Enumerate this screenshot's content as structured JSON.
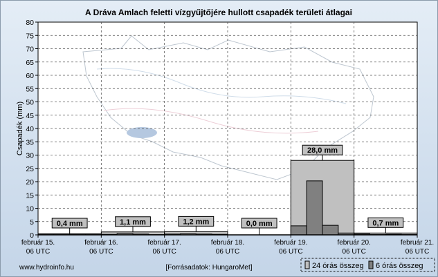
{
  "chart_data": {
    "type": "bar",
    "title": "A Dráva Amlach feletti vízgyűjtőjére hullott csapadék területi átlagai",
    "ylabel": "Csapadék (mm)",
    "xlabel": "",
    "ylim": [
      0,
      80
    ],
    "yticks": [
      0,
      5,
      10,
      15,
      20,
      25,
      30,
      35,
      40,
      45,
      50,
      55,
      60,
      65,
      70,
      75,
      80
    ],
    "grid": true,
    "xticks": [
      {
        "date": "február 15.",
        "time": "06 UTC"
      },
      {
        "date": "február 16.",
        "time": "06 UTC"
      },
      {
        "date": "február 17.",
        "time": "06 UTC"
      },
      {
        "date": "február 18.",
        "time": "06 UTC"
      },
      {
        "date": "február 19.",
        "time": "06 UTC"
      },
      {
        "date": "február 20.",
        "time": "06 UTC"
      },
      {
        "date": "február 21.",
        "time": "06 UTC"
      }
    ],
    "series": [
      {
        "name": "24 órás összeg",
        "color": "#c0c0c0",
        "values": [
          0.4,
          1.1,
          1.2,
          0.0,
          28.0,
          0.7
        ],
        "labels": [
          "0,4 mm",
          "1,1 mm",
          "1,2 mm",
          "0,0 mm",
          "28,0 mm",
          "0,7 mm"
        ]
      },
      {
        "name": "6 órás összeg",
        "color": "#808080",
        "values": [
          0.1,
          0.1,
          0.1,
          0.1,
          0.2,
          0.5,
          0.3,
          0.1,
          0.3,
          0.4,
          0.3,
          0.2,
          0,
          0,
          0,
          0,
          3.4,
          20.3,
          3.6,
          0.7,
          0.3,
          0.1,
          0.2,
          0.1
        ]
      }
    ],
    "legend": "bottom-right"
  },
  "footer": {
    "site": "www.hydroinfo.hu",
    "source": "[Forrásadatok: HungaroMet]"
  }
}
